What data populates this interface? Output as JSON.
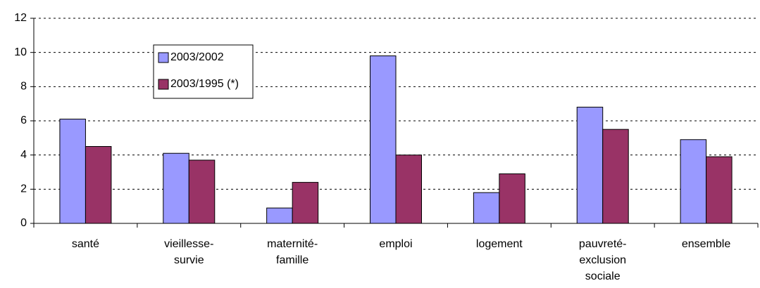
{
  "chart_data": {
    "type": "bar",
    "categories": [
      "santé",
      "vieillesse-\nsurvie",
      "maternité-\nfamille",
      "emploi",
      "logement",
      "pauvreté-\nexclusion\nsociale",
      "ensemble"
    ],
    "series": [
      {
        "name": "2003/2002",
        "color": "#9999ff",
        "values": [
          6.1,
          4.1,
          0.9,
          9.8,
          1.8,
          6.8,
          4.9
        ]
      },
      {
        "name": "2003/1995 (*)",
        "color": "#993366",
        "values": [
          4.5,
          3.7,
          2.4,
          4.0,
          2.9,
          5.5,
          3.9
        ]
      }
    ],
    "ylim": [
      0,
      12
    ],
    "yticks": [
      0,
      2,
      4,
      6,
      8,
      10,
      12
    ],
    "grid": true
  }
}
